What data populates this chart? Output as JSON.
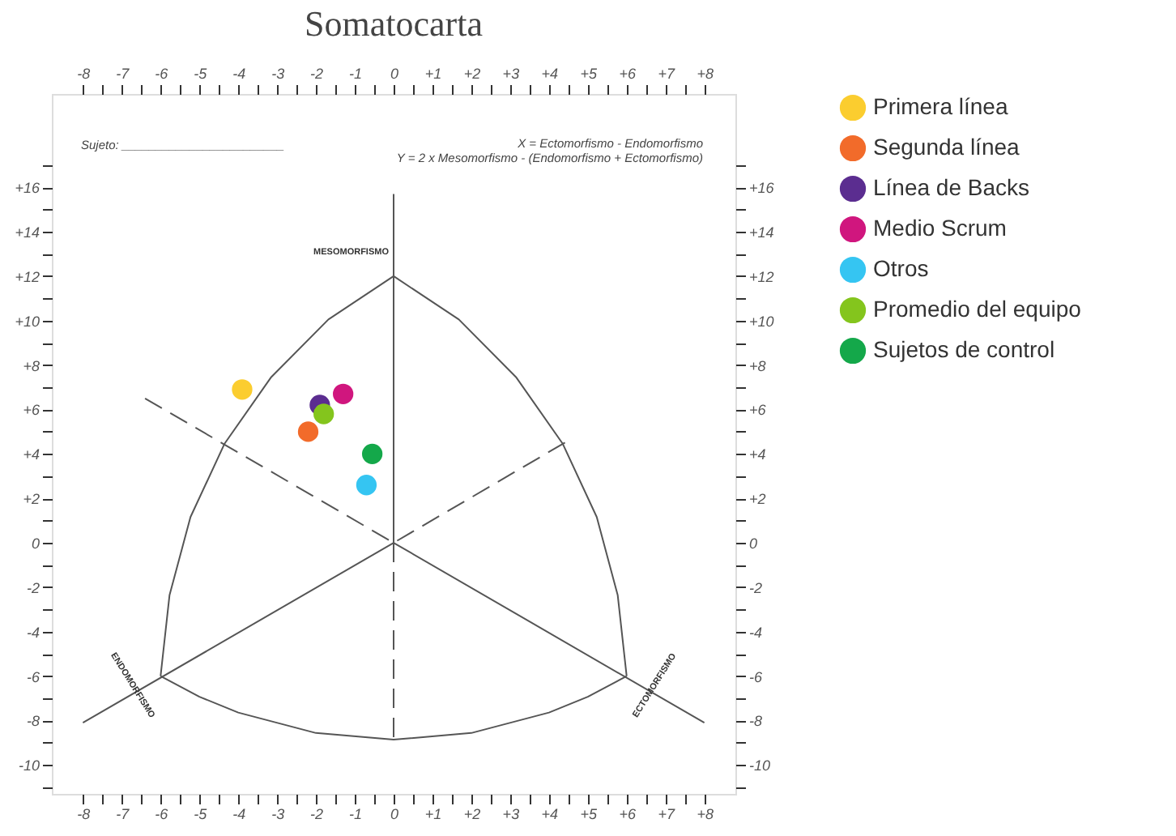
{
  "chart_data": {
    "type": "scatter",
    "title": "Somatocarta",
    "xlim": [
      -8.8,
      8.8
    ],
    "ylim": [
      -11.3,
      20.2
    ],
    "x2lim": [
      -8.8,
      8.8
    ],
    "y2lim": [
      -11.3,
      20.2
    ],
    "xticks": [
      {
        "value": -8,
        "label": "-8"
      },
      {
        "value": -7,
        "label": "-7"
      },
      {
        "value": -6,
        "label": "-6"
      },
      {
        "value": -5,
        "label": "-5"
      },
      {
        "value": -4,
        "label": "-4"
      },
      {
        "value": -3,
        "label": "-3"
      },
      {
        "value": -2,
        "label": "-2"
      },
      {
        "value": -1,
        "label": "-1"
      },
      0,
      {
        "value": 1,
        "label": "+1"
      },
      {
        "value": 2,
        "label": "+2"
      },
      {
        "value": 3,
        "label": "+3"
      },
      {
        "value": 4,
        "label": "+4"
      },
      {
        "value": 5,
        "label": "+5"
      },
      {
        "value": 6,
        "label": "+6"
      },
      {
        "value": 7,
        "label": "+7"
      },
      {
        "value": 8,
        "label": "+8"
      },
      {
        "value": -7.5,
        "label": null
      },
      {
        "value": -6.5,
        "label": null
      },
      {
        "value": -5.5,
        "label": null
      },
      {
        "value": -4.5,
        "label": null
      },
      {
        "value": -3.5,
        "label": null
      },
      {
        "value": -2.5,
        "label": null
      },
      {
        "value": -1.5,
        "label": null
      },
      {
        "value": -0.5,
        "label": null
      },
      {
        "value": 0.5,
        "label": null
      },
      {
        "value": 1.5,
        "label": null
      },
      {
        "value": 2.5,
        "label": null
      },
      {
        "value": 3.5,
        "label": null
      },
      {
        "value": 4.5,
        "label": null
      },
      {
        "value": 5.5,
        "label": null
      },
      {
        "value": 6.5,
        "label": null
      },
      {
        "value": 7.5,
        "label": null
      }
    ],
    "x2ticks": [
      {
        "value": -8,
        "label": "-8"
      },
      {
        "value": -7,
        "label": "-7"
      },
      {
        "value": -6,
        "label": "-6"
      },
      {
        "value": -5,
        "label": "-5"
      },
      {
        "value": -4,
        "label": "-4"
      },
      {
        "value": -3,
        "label": "-3"
      },
      {
        "value": -2,
        "label": "-2"
      },
      {
        "value": -1,
        "label": "-1"
      },
      0,
      {
        "value": 1,
        "label": "+1"
      },
      {
        "value": 2,
        "label": "+2"
      },
      {
        "value": 3,
        "label": "+3"
      },
      {
        "value": 4,
        "label": "+4"
      },
      {
        "value": 5,
        "label": "+5"
      },
      {
        "value": 6,
        "label": "+6"
      },
      {
        "value": 7,
        "label": "+7"
      },
      {
        "value": 8,
        "label": "+8"
      },
      {
        "value": -7.5,
        "label": null
      },
      {
        "value": -6.5,
        "label": null
      },
      {
        "value": -5.5,
        "label": null
      },
      {
        "value": -4.5,
        "label": null
      },
      {
        "value": -3.5,
        "label": null
      },
      {
        "value": -2.5,
        "label": null
      },
      {
        "value": -1.5,
        "label": null
      },
      {
        "value": -0.5,
        "label": null
      },
      {
        "value": 0.5,
        "label": null
      },
      {
        "value": 1.5,
        "label": null
      },
      {
        "value": 2.5,
        "label": null
      },
      {
        "value": 3.5,
        "label": null
      },
      {
        "value": 4.5,
        "label": null
      },
      {
        "value": 5.5,
        "label": null
      },
      {
        "value": 6.5,
        "label": null
      },
      {
        "value": 7.5,
        "label": null
      }
    ],
    "yticks": [
      {
        "value": 16,
        "label": "+16"
      },
      {
        "value": 14,
        "label": "+14"
      },
      {
        "value": 12,
        "label": "+12"
      },
      {
        "value": 10,
        "label": "+10"
      },
      {
        "value": 8,
        "label": "+8"
      },
      {
        "value": 6,
        "label": "+6"
      },
      {
        "value": 4,
        "label": "+4"
      },
      {
        "value": 2,
        "label": "+2"
      },
      0,
      -2,
      -4,
      -6,
      -8,
      -10,
      {
        "value": 17,
        "label": null
      },
      {
        "value": 15,
        "label": null
      },
      {
        "value": 13,
        "label": null
      },
      {
        "value": 11,
        "label": null
      },
      {
        "value": 9,
        "label": null
      },
      {
        "value": 7,
        "label": null
      },
      {
        "value": 5,
        "label": null
      },
      {
        "value": 3,
        "label": null
      },
      {
        "value": 1,
        "label": null
      },
      {
        "value": -1,
        "label": null
      },
      {
        "value": -3,
        "label": null
      },
      {
        "value": -5,
        "label": null
      },
      {
        "value": -7,
        "label": null
      },
      {
        "value": -9,
        "label": null
      },
      {
        "value": -11,
        "label": null
      }
    ],
    "y2ticks": [
      {
        "value": 16,
        "label": "+16"
      },
      {
        "value": 14,
        "label": "+14"
      },
      {
        "value": 12,
        "label": "+12"
      },
      {
        "value": 10,
        "label": "+10"
      },
      {
        "value": 8,
        "label": "+8"
      },
      {
        "value": 6,
        "label": "+6"
      },
      {
        "value": 4,
        "label": "+4"
      },
      {
        "value": 2,
        "label": "+2"
      },
      0,
      -2,
      -4,
      -6,
      -8,
      -10,
      {
        "value": 17,
        "label": null
      },
      {
        "value": 15,
        "label": null
      },
      {
        "value": 13,
        "label": null
      },
      {
        "value": 11,
        "label": null
      },
      {
        "value": 9,
        "label": null
      },
      {
        "value": 7,
        "label": null
      },
      {
        "value": 5,
        "label": null
      },
      {
        "value": 3,
        "label": null
      },
      {
        "value": 1,
        "label": null
      },
      {
        "value": -1,
        "label": null
      },
      {
        "value": -3,
        "label": null
      },
      {
        "value": -5,
        "label": null
      },
      {
        "value": -7,
        "label": null
      },
      {
        "value": -9,
        "label": null
      },
      {
        "value": -11,
        "label": null
      }
    ],
    "grid": false,
    "legend": "right",
    "marker": "circle",
    "series": [
      {
        "type": "line",
        "color": "#555555",
        "line_style": "solid",
        "marker": "none",
        "x": [
          0,
          -1.68,
          -3.15,
          -4.35,
          -5.23,
          -5.77,
          -6
        ],
        "values": [
          12,
          10.05,
          7.46,
          4.47,
          1.16,
          -2.36,
          -6
        ]
      },
      {
        "type": "line",
        "color": "#555555",
        "line_style": "solid",
        "marker": "none",
        "x": [
          0,
          1.68,
          3.15,
          4.35,
          5.23,
          5.77,
          6
        ],
        "values": [
          12,
          10.05,
          7.46,
          4.47,
          1.16,
          -2.36,
          -6
        ]
      },
      {
        "type": "line",
        "color": "#555555",
        "line_style": "solid",
        "marker": "none",
        "x": [
          -6,
          -5,
          -4,
          -2,
          0,
          2,
          4,
          5,
          6
        ],
        "values": [
          -6,
          -6.93,
          -7.64,
          -8.56,
          -8.86,
          -8.56,
          -7.64,
          -6.93,
          -6
        ]
      },
      {
        "type": "line",
        "color": "#555555",
        "line_style": "solid",
        "marker": "none",
        "x": [
          0,
          0
        ],
        "values": [
          15.7,
          0
        ]
      },
      {
        "type": "line",
        "color": "#555555",
        "line_style": "dashed",
        "marker": "none",
        "x": [
          0,
          0
        ],
        "values": [
          0,
          -8.86
        ]
      },
      {
        "type": "line",
        "color": "#555555",
        "line_style": "solid",
        "marker": "none",
        "x": [
          -8,
          0,
          8
        ],
        "values": [
          -8.1,
          0,
          -8.1
        ]
      },
      {
        "type": "line",
        "color": "#555555",
        "line_style": "dashed",
        "marker": "none",
        "x": [
          -6.4,
          0,
          4.5
        ],
        "values": [
          6.5,
          0,
          4.6
        ]
      },
      {
        "type": "scatter",
        "name": "Primera línea",
        "color": "#fbcd2f",
        "x": [
          -3.9
        ],
        "values": [
          6.9
        ]
      },
      {
        "type": "scatter",
        "name": "Segunda línea",
        "color": "#f26b2a",
        "x": [
          -2.2
        ],
        "values": [
          5.0
        ]
      },
      {
        "type": "scatter",
        "name": "Línea de Backs",
        "color": "#5b2d90",
        "x": [
          -1.9
        ],
        "values": [
          6.2
        ]
      },
      {
        "type": "scatter",
        "name": "Medio Scrum",
        "color": "#d0167e",
        "x": [
          -1.3
        ],
        "values": [
          6.7
        ]
      },
      {
        "type": "scatter",
        "name": "Otros",
        "color": "#35c5f2",
        "x": [
          -0.7
        ],
        "values": [
          2.6
        ]
      },
      {
        "type": "scatter",
        "name": "Promedio del equipo",
        "color": "#84c51d",
        "x": [
          -1.8
        ],
        "values": [
          5.8
        ]
      },
      {
        "type": "scatter",
        "name": "Sujetos de control",
        "color": "#14a84a",
        "x": [
          -0.55
        ],
        "values": [
          4.0
        ]
      }
    ],
    "annotations": [
      "MESOMORFISMO",
      "ENDOMORFISMO",
      "ECTOMORFISMO",
      "Sujeto: ________________________",
      "X = Ectomorfismo - Endomorfismo",
      "Y = 2 x Mesomorfismo - (Endomorfismo + Ectomorfismo)"
    ]
  }
}
